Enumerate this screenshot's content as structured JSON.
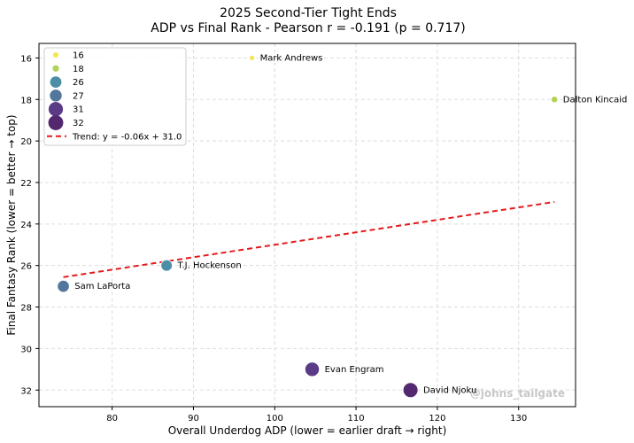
{
  "chart_data": {
    "type": "scatter",
    "title_line1": "2025 Second-Tier Tight Ends",
    "title_line2": "ADP vs Final Rank - Pearson r = -0.191 (p = 0.717)",
    "xlabel": "Overall Underdog ADP (lower = earlier draft → right)",
    "ylabel": "Final Fantasy Rank (lower = better → top)",
    "xlim": [
      71.0,
      137.0
    ],
    "ylim": [
      32.8,
      15.3
    ],
    "y_inverted": true,
    "x_ticks": [
      80,
      90,
      100,
      110,
      120,
      130
    ],
    "y_ticks": [
      16,
      18,
      20,
      22,
      24,
      26,
      28,
      30,
      32
    ],
    "grid": true,
    "legend_position": "upper-left",
    "points": [
      {
        "name": "Mark Andrews",
        "adp": 97.2,
        "rank": 16,
        "color": "#f5e650"
      },
      {
        "name": "Dalton Kincaid",
        "adp": 134.4,
        "rank": 18,
        "color": "#b2d35a"
      },
      {
        "name": "T.J. Hockenson",
        "adp": 86.7,
        "rank": 26,
        "color": "#4b8ea6"
      },
      {
        "name": "Sam LaPorta",
        "adp": 74.0,
        "rank": 27,
        "color": "#53779c"
      },
      {
        "name": "Evan Engram",
        "adp": 104.6,
        "rank": 31,
        "color": "#5b3a86"
      },
      {
        "name": "David Njoku",
        "adp": 116.7,
        "rank": 32,
        "color": "#54286e"
      }
    ],
    "trend": {
      "label": "Trend: y = -0.06x + 31.0",
      "slope": -0.06,
      "intercept": 31.0,
      "x_range": [
        74.0,
        134.4
      ],
      "color": "#e41a1c"
    },
    "legend_sizes": [
      {
        "label": "16",
        "color": "#f5e650"
      },
      {
        "label": "18",
        "color": "#b2d35a"
      },
      {
        "label": "26",
        "color": "#4b8ea6"
      },
      {
        "label": "27",
        "color": "#53779c"
      },
      {
        "label": "31",
        "color": "#5b3a86"
      },
      {
        "label": "32",
        "color": "#54286e"
      }
    ],
    "watermark": "@johns_tailgate"
  }
}
